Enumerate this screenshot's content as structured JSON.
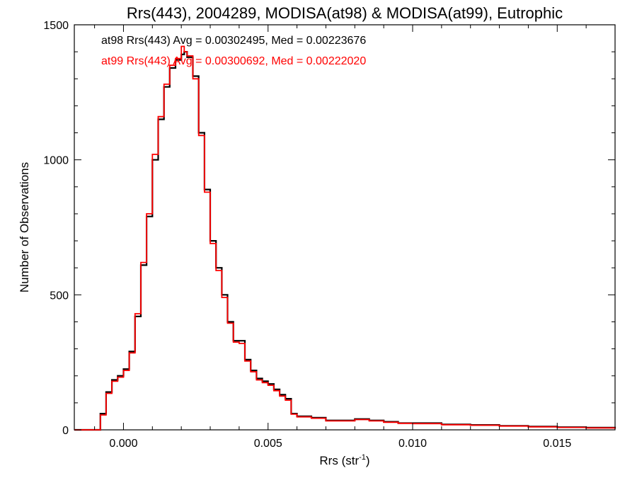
{
  "chart_data": {
    "type": "line",
    "title": "Rrs(443), 2004289, MODISA(at98) & MODISA(at99), Eutrophic",
    "xlabel_main": "Rrs (str",
    "xlabel_sup": "-1",
    "xlabel_tail": ")",
    "ylabel": "Number of Observations",
    "xlim": [
      -0.0017,
      0.017
    ],
    "ylim": [
      0,
      1500
    ],
    "xticks": [
      0.0,
      0.005,
      0.01,
      0.015
    ],
    "xtick_labels": [
      "0.000",
      "0.005",
      "0.010",
      "0.015"
    ],
    "yticks": [
      0,
      500,
      1000,
      1500
    ],
    "ytick_labels": [
      "0",
      "500",
      "1000",
      "1500"
    ],
    "grid": false,
    "annotations": [
      {
        "text": "at98 Rrs(443) Avg = 0.00302495, Med = 0.00223676",
        "color": "#000000"
      },
      {
        "text": "at99 Rrs(443) Avg = 0.00300692, Med = 0.00222020",
        "color": "#ff0000"
      }
    ],
    "series": [
      {
        "color": "#000000",
        "x": [
          -0.0017,
          -0.001,
          -0.0008,
          -0.0006,
          -0.0004,
          -0.0002,
          0.0,
          0.0002,
          0.0004,
          0.0006,
          0.0008,
          0.001,
          0.0012,
          0.0014,
          0.0016,
          0.0018,
          0.002,
          0.0021,
          0.0022,
          0.0024,
          0.0026,
          0.0028,
          0.003,
          0.0032,
          0.0034,
          0.0036,
          0.0038,
          0.004,
          0.0042,
          0.0044,
          0.0046,
          0.0048,
          0.005,
          0.0052,
          0.0054,
          0.0056,
          0.0058,
          0.006,
          0.0065,
          0.007,
          0.0075,
          0.008,
          0.0085,
          0.009,
          0.0095,
          0.01,
          0.011,
          0.012,
          0.013,
          0.014,
          0.015,
          0.016,
          0.017
        ],
        "y": [
          0,
          0,
          60,
          140,
          185,
          200,
          225,
          290,
          420,
          610,
          790,
          1000,
          1150,
          1270,
          1340,
          1370,
          1390,
          1400,
          1380,
          1310,
          1100,
          890,
          700,
          600,
          500,
          400,
          330,
          330,
          260,
          220,
          190,
          180,
          170,
          150,
          130,
          115,
          60,
          50,
          45,
          35,
          35,
          40,
          35,
          30,
          25,
          25,
          20,
          18,
          15,
          12,
          10,
          8,
          5
        ]
      },
      {
        "color": "#ff0000",
        "x": [
          -0.0017,
          -0.001,
          -0.0008,
          -0.0006,
          -0.0004,
          -0.0002,
          0.0,
          0.0002,
          0.0004,
          0.0006,
          0.0008,
          0.001,
          0.0012,
          0.0014,
          0.0016,
          0.0018,
          0.002,
          0.0021,
          0.0022,
          0.0024,
          0.0026,
          0.0028,
          0.003,
          0.0032,
          0.0034,
          0.0036,
          0.0038,
          0.004,
          0.0042,
          0.0044,
          0.0046,
          0.0048,
          0.005,
          0.0052,
          0.0054,
          0.0056,
          0.0058,
          0.006,
          0.0065,
          0.007,
          0.0075,
          0.008,
          0.0085,
          0.009,
          0.0095,
          0.01,
          0.011,
          0.012,
          0.013,
          0.014,
          0.015,
          0.016,
          0.017
        ],
        "y": [
          0,
          0,
          55,
          135,
          180,
          195,
          220,
          285,
          430,
          620,
          800,
          1020,
          1160,
          1280,
          1350,
          1375,
          1420,
          1400,
          1385,
          1300,
          1090,
          880,
          690,
          590,
          490,
          395,
          325,
          320,
          255,
          215,
          185,
          175,
          165,
          145,
          125,
          110,
          58,
          48,
          43,
          33,
          33,
          38,
          33,
          28,
          24,
          23,
          19,
          17,
          14,
          11,
          9,
          7,
          4
        ]
      }
    ]
  }
}
